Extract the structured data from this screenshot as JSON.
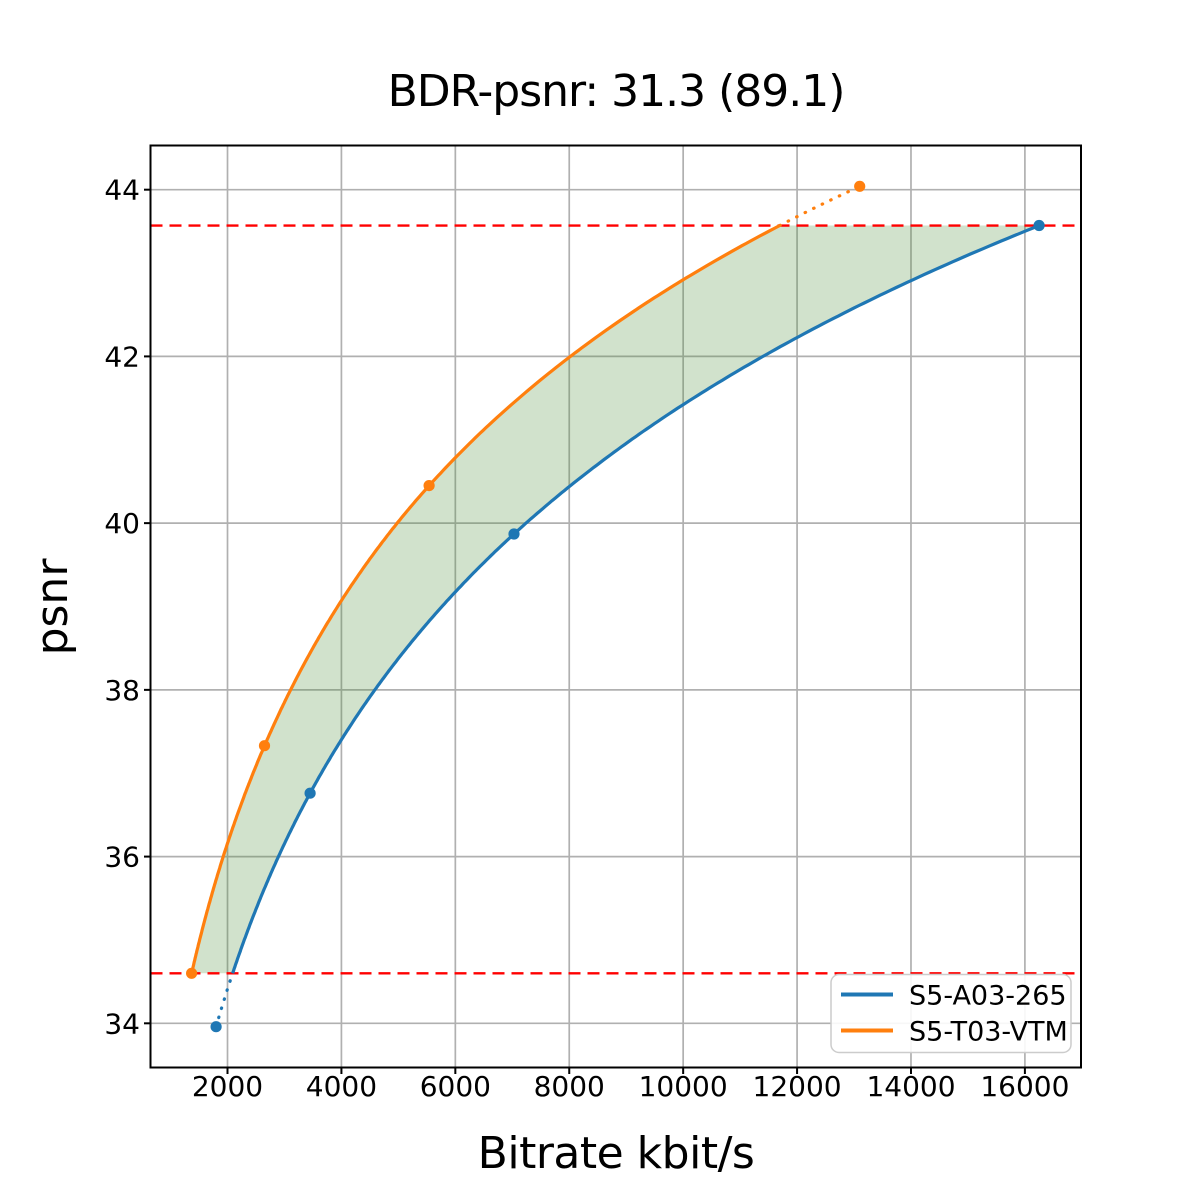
{
  "chart_data": {
    "type": "line",
    "title": "BDR-psnr: 31.3 (89.1)",
    "xlabel": "Bitrate kbit/s",
    "ylabel": "psnr",
    "xlim": [
      648,
      16985
    ],
    "ylim": [
      33.47,
      44.53
    ],
    "xticks": [
      2000,
      4000,
      6000,
      8000,
      10000,
      12000,
      14000,
      16000
    ],
    "yticks": [
      34,
      36,
      38,
      40,
      42,
      44
    ],
    "grid": true,
    "grid_color": "#b0b0b0",
    "interpolation": "pchip-logx",
    "series": [
      {
        "name": "S5-A03-265",
        "color": "#1f77b4",
        "marker": "circle",
        "x": [
          1800,
          3450,
          7030,
          16250
        ],
        "y": [
          33.96,
          36.76,
          39.87,
          43.57
        ]
      },
      {
        "name": "S5-T03-VTM",
        "color": "#ff7f0e",
        "marker": "circle",
        "x": [
          1370,
          2650,
          5540,
          13100
        ],
        "y": [
          34.6,
          37.33,
          40.45,
          44.04
        ]
      }
    ],
    "hlines": {
      "y_values": [
        34.6,
        43.57
      ],
      "color": "#ff0000",
      "linestyle": "dashed"
    },
    "fill_between": {
      "upper_series": "S5-T03-VTM",
      "lower_series": "S5-A03-265",
      "color": "#468c32",
      "alpha": 0.25
    },
    "legend": {
      "position": "lower right",
      "entries": [
        "S5-A03-265",
        "S5-T03-VTM"
      ]
    }
  }
}
